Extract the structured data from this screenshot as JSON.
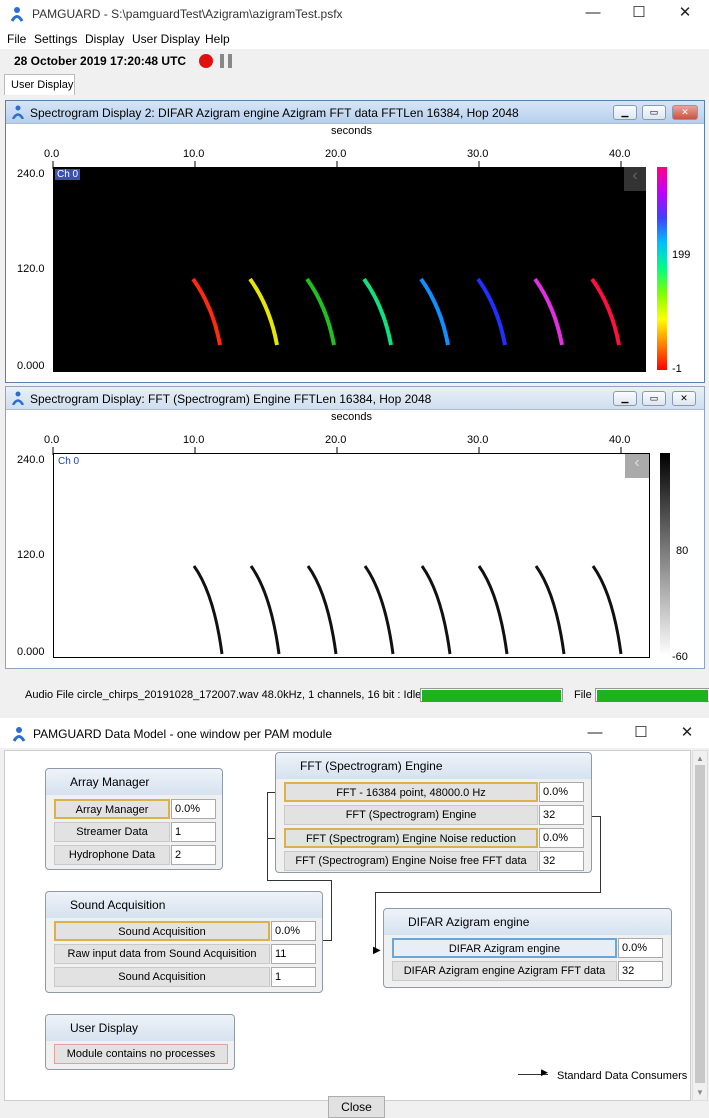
{
  "app": {
    "title": "PAMGUARD - S:\\pamguardTest\\Azigram\\azigramTest.psfx",
    "window_buttons": {
      "minimize": "—",
      "maximize": "☐",
      "close": "✕"
    }
  },
  "menu": [
    "File",
    "Settings",
    "Display",
    "User Display",
    "Help"
  ],
  "status": {
    "datetime": "28 October 2019 17:20:48 UTC"
  },
  "tabs": [
    "User Display"
  ],
  "spectrogram1": {
    "title": "Spectrogram Display 2: DIFAR Azigram engine Azigram FFT data FFTLen 16384, Hop 2048",
    "x_axis_label": "seconds",
    "x_ticks": [
      "0.0",
      "10.0",
      "20.0",
      "30.0",
      "40.0"
    ],
    "y_ticks": [
      "240.0",
      "120.0",
      "0.000"
    ],
    "channel": "Ch 0",
    "colorbar_ticks": [
      "199",
      "-1"
    ]
  },
  "spectrogram2": {
    "title": "Spectrogram Display: FFT (Spectrogram) Engine FFTLen 16384, Hop 2048",
    "x_axis_label": "seconds",
    "x_ticks": [
      "0.0",
      "10.0",
      "20.0",
      "30.0",
      "40.0"
    ],
    "y_ticks": [
      "240.0",
      "120.0",
      "0.000"
    ],
    "channel": "Ch 0",
    "colorbar_ticks": [
      "80",
      "-60"
    ]
  },
  "audio_status": {
    "text": "Audio File circle_chirps_20191028_172007.wav 48.0kHz, 1 channels, 16 bit : Idle",
    "file_label": "File",
    "progress_fraction": 1.0
  },
  "datamodel": {
    "title": "PAMGUARD Data Model - one window per PAM module",
    "array_manager": {
      "name": "Array Manager",
      "rows": [
        {
          "label": "Array Manager",
          "value": "0.0%"
        },
        {
          "label": "Streamer Data",
          "value": "1"
        },
        {
          "label": "Hydrophone Data",
          "value": "2"
        }
      ]
    },
    "fft_engine": {
      "name": "FFT (Spectrogram) Engine",
      "rows": [
        {
          "label": "FFT - 16384 point, 48000.0 Hz",
          "value": "0.0%"
        },
        {
          "label": "FFT (Spectrogram) Engine",
          "value": "32"
        },
        {
          "label": "FFT (Spectrogram) Engine Noise reduction",
          "value": "0.0%"
        },
        {
          "label": "FFT (Spectrogram) Engine Noise free FFT data",
          "value": "32"
        }
      ]
    },
    "sound_acquisition": {
      "name": "Sound Acquisition",
      "rows": [
        {
          "label": "Sound Acquisition",
          "value": "0.0%"
        },
        {
          "label": "Raw input data from Sound Acquisition",
          "value": "11"
        },
        {
          "label": "Sound Acquisition",
          "value": "1"
        }
      ]
    },
    "difar": {
      "name": "DIFAR Azigram engine",
      "rows": [
        {
          "label": "DIFAR Azigram engine",
          "value": "0.0%"
        },
        {
          "label": "DIFAR Azigram engine Azigram FFT data",
          "value": "32"
        }
      ]
    },
    "user_display": {
      "name": "User Display",
      "message": "Module contains no processes"
    },
    "legend": "Standard Data Consumers",
    "close_button": "Close"
  }
}
